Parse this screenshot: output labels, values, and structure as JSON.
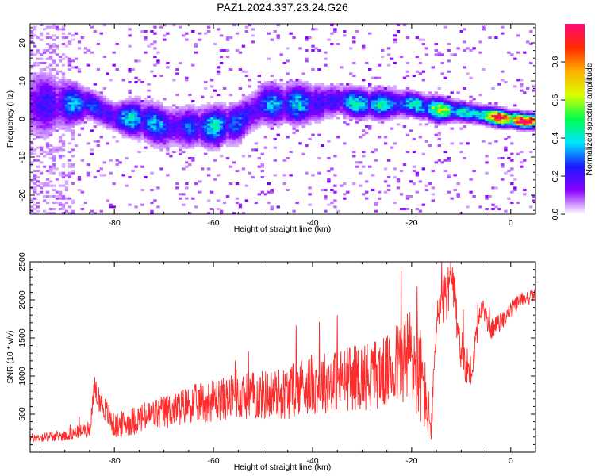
{
  "title": "PAZ1.2024.337.23.24.G26",
  "chart_data": [
    {
      "type": "heatmap",
      "xlabel": "Height of straight line (km)",
      "ylabel": "Frequency (Hz)",
      "xlim": [
        -97,
        5
      ],
      "ylim": [
        -25,
        25
      ],
      "xticks": [
        -80,
        -60,
        -40,
        -20,
        0
      ],
      "yticks": [
        -20,
        -10,
        0,
        10,
        20
      ],
      "colorbar": {
        "label": "Normalized spectral amplitude",
        "range": [
          0,
          1
        ],
        "ticks": [
          0.0,
          0.2,
          0.4,
          0.6,
          0.8
        ],
        "colormap": [
          "#ffffff",
          "#8a00ff",
          "#1a1aff",
          "#00e5ff",
          "#00ff4c",
          "#d8ff00",
          "#ffb000",
          "#ff2a00",
          "#ff0a78"
        ]
      },
      "ridge": [
        {
          "x": -95,
          "f": 4,
          "amp": 0.2,
          "width": 7
        },
        {
          "x": -90,
          "f": 4,
          "amp": 0.2,
          "width": 5
        },
        {
          "x": -85,
          "f": 4,
          "amp": 0.35,
          "width": 3
        },
        {
          "x": -80,
          "f": 0.5,
          "amp": 0.3,
          "width": 3
        },
        {
          "x": -75,
          "f": 0,
          "amp": 0.3,
          "width": 4
        },
        {
          "x": -70,
          "f": -2,
          "amp": 0.3,
          "width": 4
        },
        {
          "x": -65,
          "f": -2,
          "amp": 0.3,
          "width": 4
        },
        {
          "x": -60,
          "f": -2,
          "amp": 0.3,
          "width": 4
        },
        {
          "x": -55,
          "f": -1,
          "amp": 0.3,
          "width": 4
        },
        {
          "x": -50,
          "f": 4,
          "amp": 0.3,
          "width": 4
        },
        {
          "x": -45,
          "f": 4,
          "amp": 0.3,
          "width": 4
        },
        {
          "x": -40,
          "f": 4,
          "amp": 0.3,
          "width": 4
        },
        {
          "x": -35,
          "f": 5,
          "amp": 0.3,
          "width": 3
        },
        {
          "x": -30,
          "f": 4,
          "amp": 0.35,
          "width": 3
        },
        {
          "x": -25,
          "f": 4,
          "amp": 0.4,
          "width": 3
        },
        {
          "x": -20,
          "f": 4,
          "amp": 0.4,
          "width": 2.5
        },
        {
          "x": -15,
          "f": 2.5,
          "amp": 0.45,
          "width": 2.5
        },
        {
          "x": -10,
          "f": 2,
          "amp": 0.5,
          "width": 2
        },
        {
          "x": -5,
          "f": 1,
          "amp": 0.7,
          "width": 1.8
        },
        {
          "x": 0,
          "f": 0,
          "amp": 0.85,
          "width": 1.6
        },
        {
          "x": 3,
          "f": -0.5,
          "amp": 0.9,
          "width": 1.5
        }
      ]
    },
    {
      "type": "line",
      "xlabel": "Height of straight line (km)",
      "ylabel": "SNR (10 * v/v)",
      "xlim": [
        -97,
        5
      ],
      "ylim": [
        0,
        2500
      ],
      "xticks": [
        -80,
        -60,
        -40,
        -20,
        0
      ],
      "yticks": [
        500,
        1000,
        1500,
        2000,
        2500
      ],
      "series": [
        {
          "color": "#ff2a2a",
          "x": [
            -97,
            -90,
            -85,
            -84,
            -80,
            -75,
            -70,
            -65,
            -60,
            -55,
            -50,
            -45,
            -42,
            -40,
            -35,
            -30,
            -25,
            -22,
            -20,
            -18,
            -16,
            -15,
            -13,
            -12,
            -10,
            -8,
            -6,
            -4,
            -2,
            0,
            2,
            5
          ],
          "y": [
            180,
            210,
            300,
            800,
            320,
            420,
            500,
            600,
            650,
            700,
            720,
            740,
            850,
            850,
            900,
            950,
            1000,
            1150,
            1200,
            900,
            300,
            1700,
            2000,
            2300,
            1300,
            1000,
            1900,
            1600,
            1700,
            1850,
            2000,
            2050
          ],
          "spread": [
            60,
            70,
            100,
            180,
            160,
            200,
            230,
            250,
            280,
            300,
            330,
            350,
            380,
            400,
            420,
            450,
            480,
            600,
            700,
            650,
            200,
            300,
            350,
            300,
            300,
            250,
            150,
            130,
            120,
            110,
            100,
            90
          ]
        }
      ]
    }
  ]
}
